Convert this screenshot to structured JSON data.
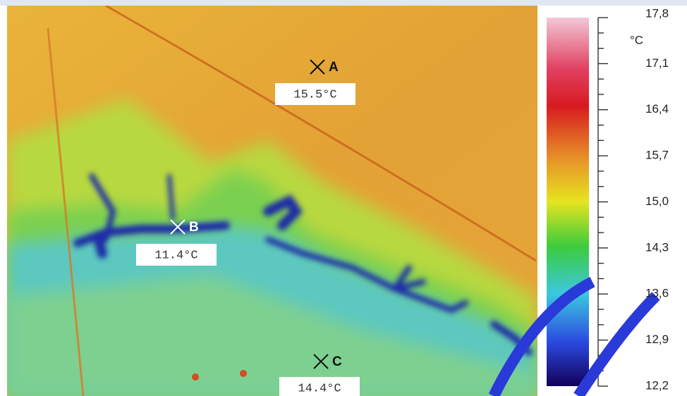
{
  "markers": [
    {
      "label": "A",
      "reading": "15.5°C"
    },
    {
      "label": "B",
      "reading": "11.4°C"
    },
    {
      "label": "C",
      "reading": "14.4°C"
    }
  ],
  "scale": {
    "unit": "°C",
    "ticks": [
      "17,8",
      "17,1",
      "16,4",
      "15,7",
      "15,0",
      "14,3",
      "13,6",
      "12,9",
      "12,2"
    ]
  }
}
